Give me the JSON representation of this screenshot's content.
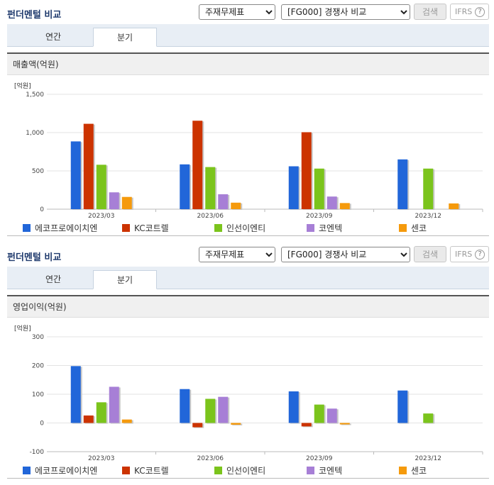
{
  "colors": [
    "#2166d9",
    "#cc3300",
    "#7bc41c",
    "#a77fd6",
    "#f59a0c"
  ],
  "panels": [
    {
      "title": "펀더멘털 비교",
      "select_statement": "주재무제표",
      "select_compare": "[FG000] 경쟁사 비교",
      "search_label": "검색",
      "ifrs_label": "IFRS",
      "ifrs_help": "?",
      "tabs": [
        {
          "label": "연간"
        },
        {
          "label": "분기"
        }
      ],
      "active_tab": 1,
      "chart_title": "매출액(억원)",
      "chart_data": {
        "type": "bar",
        "unit_label": "[억원]",
        "categories": [
          "2023/03",
          "2023/06",
          "2023/09",
          "2023/12"
        ],
        "ylim": [
          0,
          1500
        ],
        "yticks": [
          0,
          500,
          1000,
          1500
        ],
        "ytick_labels": [
          "0",
          "500",
          "1,000",
          "1,500"
        ],
        "series": [
          {
            "name": "에코프로에이치엔",
            "values": [
              885,
              585,
              560,
              650
            ]
          },
          {
            "name": "KC코트렐",
            "values": [
              1115,
              1155,
              1005,
              null
            ]
          },
          {
            "name": "인선이엔티",
            "values": [
              580,
              550,
              530,
              530
            ]
          },
          {
            "name": "코엔텍",
            "values": [
              220,
              195,
              165,
              null
            ]
          },
          {
            "name": "센코",
            "values": [
              160,
              85,
              80,
              75
            ]
          }
        ],
        "grid": true
      }
    },
    {
      "title": "펀더멘털 비교",
      "select_statement": "주재무제표",
      "select_compare": "[FG000] 경쟁사 비교",
      "search_label": "검색",
      "ifrs_label": "IFRS",
      "ifrs_help": "?",
      "tabs": [
        {
          "label": "연간"
        },
        {
          "label": "분기"
        }
      ],
      "active_tab": 1,
      "chart_title": "영업이익(억원)",
      "chart_data": {
        "type": "bar",
        "unit_label": "[억원]",
        "categories": [
          "2023/03",
          "2023/06",
          "2023/09",
          "2023/12"
        ],
        "ylim": [
          -100,
          300
        ],
        "yticks": [
          -100,
          0,
          100,
          200,
          300
        ],
        "ytick_labels": [
          "-100",
          "0",
          "100",
          "200",
          "300"
        ],
        "series": [
          {
            "name": "에코프로에이치엔",
            "values": [
              198,
              118,
              110,
              113
            ]
          },
          {
            "name": "KC코트렐",
            "values": [
              26,
              -15,
              -12,
              null
            ]
          },
          {
            "name": "인선이엔티",
            "values": [
              72,
              84,
              64,
              33
            ]
          },
          {
            "name": "코엔텍",
            "values": [
              126,
              91,
              50,
              null
            ]
          },
          {
            "name": "센코",
            "values": [
              12,
              -6,
              -5,
              null
            ]
          }
        ],
        "grid": true
      }
    }
  ]
}
